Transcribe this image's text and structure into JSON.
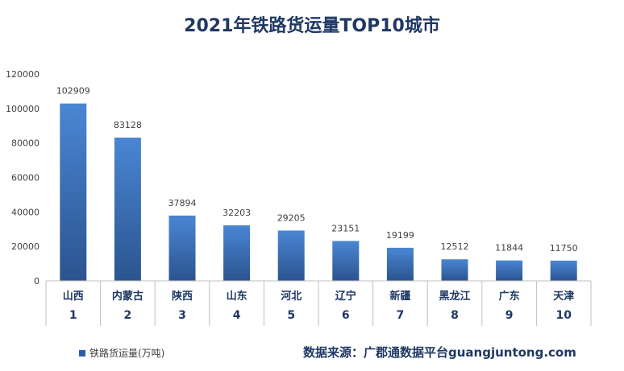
{
  "colors": {
    "bar_top": "#4a86d4",
    "bar_bottom": "#2b548f",
    "title": "#1f3864",
    "axis": "#bfbfbf",
    "text": "#404040"
  },
  "chart_data": {
    "type": "bar",
    "title": "2021年铁路货运量TOP10城市",
    "categories": [
      "山西",
      "内蒙古",
      "陕西",
      "山东",
      "河北",
      "辽宁",
      "新疆",
      "黑龙江",
      "广东",
      "天津"
    ],
    "ranks": [
      "1",
      "2",
      "3",
      "4",
      "5",
      "6",
      "7",
      "8",
      "9",
      "10"
    ],
    "series": [
      {
        "name": "铁路货运量(万吨)",
        "values": [
          102909,
          83128,
          37894,
          32203,
          29205,
          23151,
          19199,
          12512,
          11844,
          11750
        ]
      }
    ],
    "ylim": [
      0,
      120000
    ],
    "yticks": [
      0,
      20000,
      40000,
      60000,
      80000,
      100000,
      120000
    ],
    "grid": false,
    "legend": "bottom-left"
  },
  "source": "数据来源：广郡通数据平台guangjuntong.com"
}
